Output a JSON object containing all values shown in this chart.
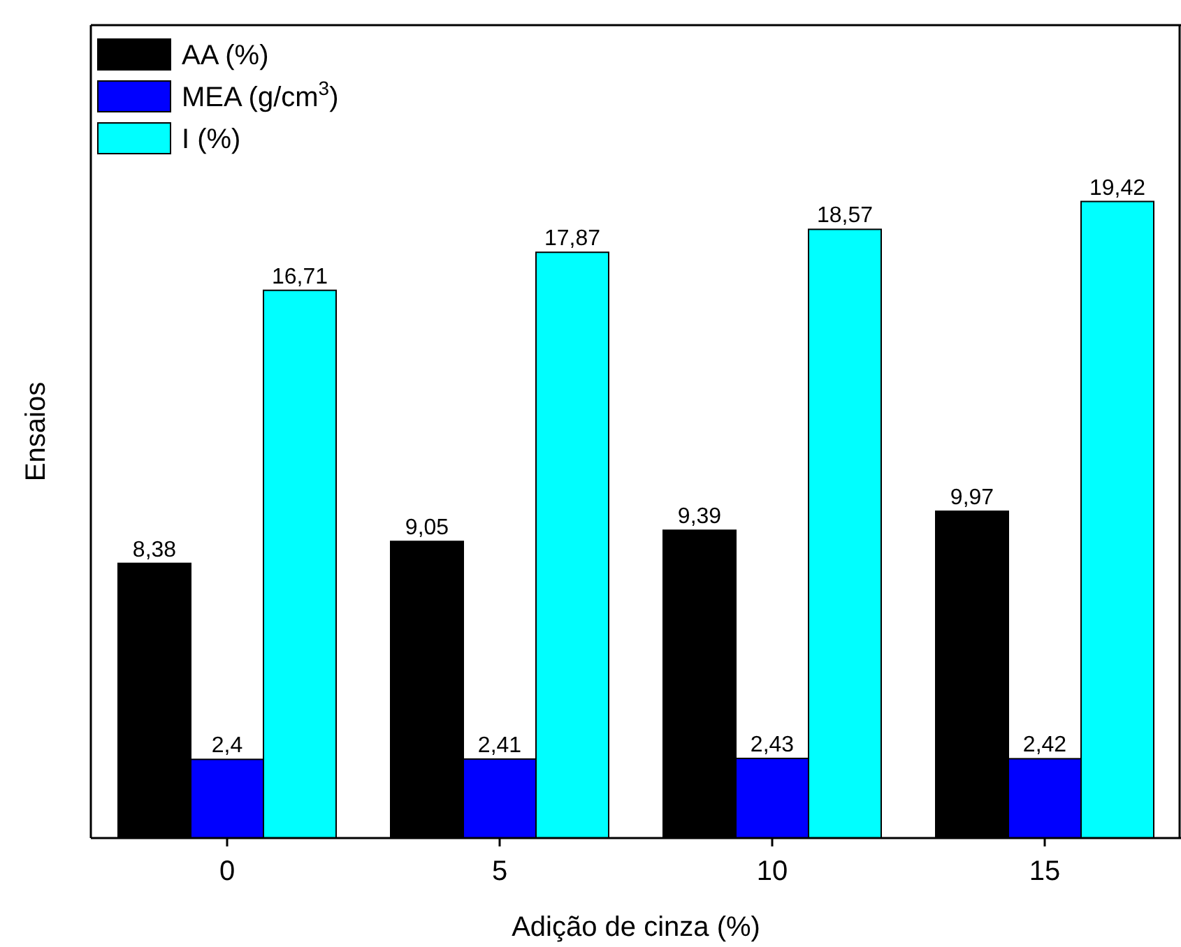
{
  "chart_data": {
    "type": "bar",
    "xlabel": "Adição de cinza (%)",
    "ylabel": "Ensaios",
    "categories": [
      "0",
      "5",
      "10",
      "15"
    ],
    "ylim": [
      0,
      24.8
    ],
    "tick_labels": "x",
    "legend": "top left",
    "series": [
      {
        "name": "AA (%)",
        "color": "#000000",
        "values": [
          8.38,
          9.05,
          9.39,
          9.97
        ],
        "value_labels": [
          "8,38",
          "9,05",
          "9,39",
          "9,97"
        ]
      },
      {
        "name": "MEA (g/cm$^{3}$)",
        "color": "#0000ff",
        "values": [
          2.4,
          2.41,
          2.43,
          2.42
        ],
        "value_labels": [
          "2,4",
          "2,41",
          "2,43",
          "2,42"
        ]
      },
      {
        "name": "I (%)",
        "color": "#00ffff",
        "values": [
          16.71,
          17.87,
          18.57,
          19.42
        ],
        "value_labels": [
          "16,71",
          "17,87",
          "18,57",
          "19,42"
        ]
      }
    ]
  }
}
